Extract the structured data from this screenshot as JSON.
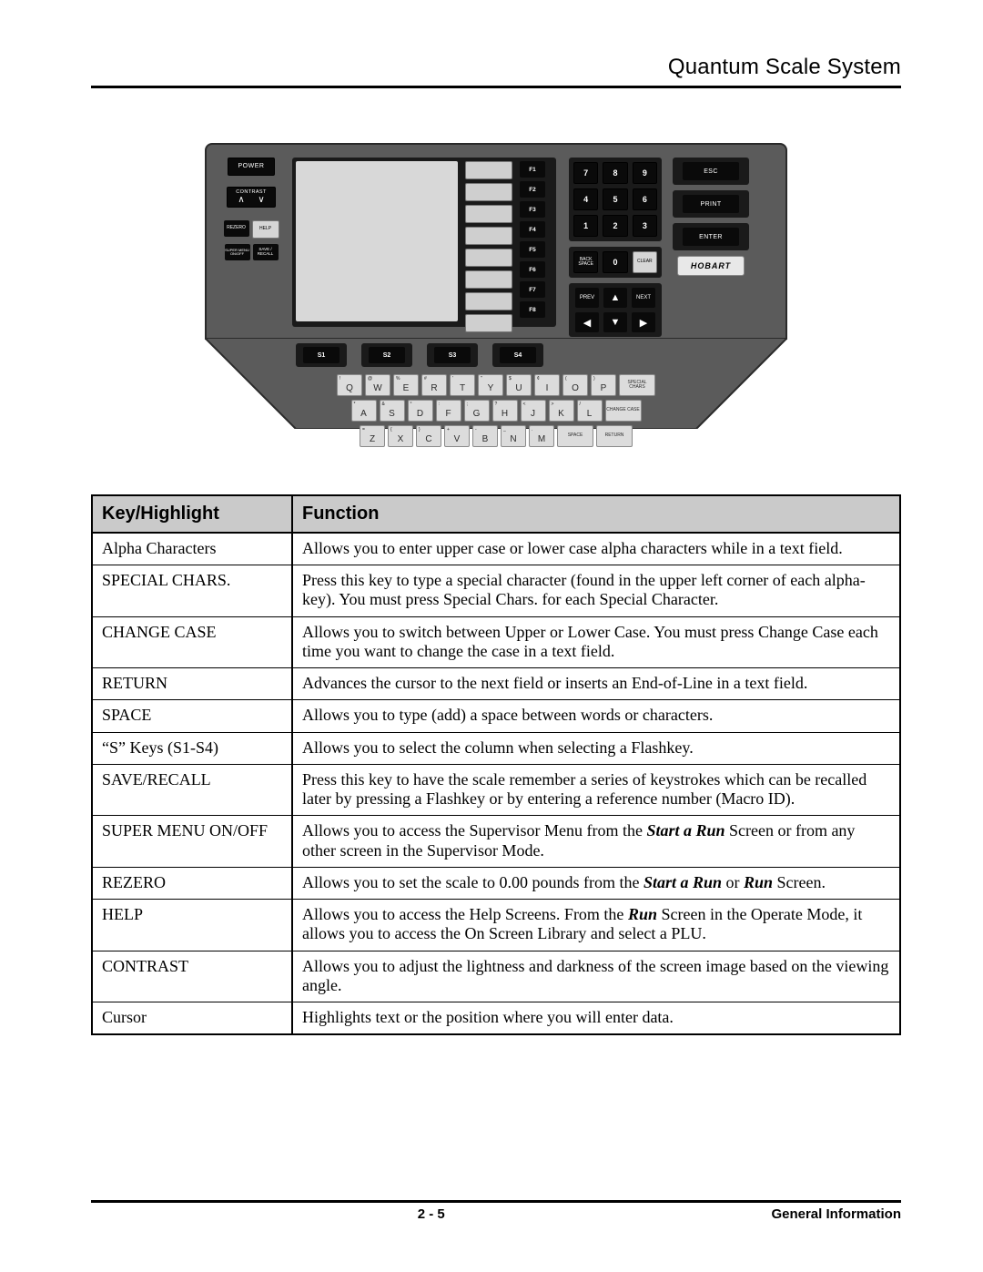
{
  "header": {
    "title": "Quantum Scale System"
  },
  "panel": {
    "left": {
      "power": "POWER",
      "contrast": "CONTRAST",
      "rezero": "REZERO",
      "help": "HELP",
      "super_menu": "SUPER\nMENU\nON/OFF",
      "save_recall": "SAVE /\nRECALL"
    },
    "fkeys": [
      "F1",
      "F2",
      "F3",
      "F4",
      "F5",
      "F6",
      "F7",
      "F8"
    ],
    "skeys": [
      "S1",
      "S2",
      "S3",
      "S4"
    ],
    "numpad": {
      "r1": [
        "7",
        "8",
        "9"
      ],
      "r2": [
        "4",
        "5",
        "6"
      ],
      "r3": [
        "1",
        "2",
        "3"
      ],
      "r4": [
        "BACK\nSPACE",
        "0",
        "CLEAR"
      ]
    },
    "right": {
      "esc": "ESC",
      "print": "PRINT",
      "enter": "ENTER",
      "brand": "HOBART"
    },
    "nav": {
      "prev": "PREV",
      "next": "NEXT",
      "up": "▲",
      "down": "▼",
      "left": "◀",
      "right": "▶"
    },
    "qwerty": {
      "row1": [
        {
          "s": "!",
          "m": "Q"
        },
        {
          "s": "@",
          "m": "W"
        },
        {
          "s": "%",
          "m": "E"
        },
        {
          "s": "#",
          "m": "R"
        },
        {
          "s": "'",
          "m": "T"
        },
        {
          "s": "\"",
          "m": "Y"
        },
        {
          "s": "$",
          "m": "U"
        },
        {
          "s": "¢",
          "m": "I"
        },
        {
          "s": "(",
          "m": "O"
        },
        {
          "s": ")",
          "m": "P"
        },
        {
          "s": "",
          "m": "SPECIAL\nCHARS",
          "wide": true
        }
      ],
      "row2": [
        {
          "s": "*",
          "m": "A"
        },
        {
          "s": "&",
          "m": "S"
        },
        {
          "s": "°",
          "m": "D"
        },
        {
          "s": ":",
          "m": "F"
        },
        {
          "s": ";",
          "m": "G"
        },
        {
          "s": "?",
          "m": "H"
        },
        {
          "s": "<",
          "m": "J"
        },
        {
          "s": ">",
          "m": "K"
        },
        {
          "s": "/",
          "m": "L"
        },
        {
          "s": "",
          "m": "CHANGE\nCASE",
          "wide": true
        }
      ],
      "row3": [
        {
          "s": "=",
          "m": "Z"
        },
        {
          "s": "{",
          "m": "X"
        },
        {
          "s": "}",
          "m": "C"
        },
        {
          "s": "+",
          "m": "V"
        },
        {
          "s": "-",
          "m": "B"
        },
        {
          "s": "_",
          "m": "N"
        },
        {
          "s": ".",
          "m": "M"
        },
        {
          "s": "",
          "m": "SPACE",
          "wide": true
        },
        {
          "s": "",
          "m": "RETURN",
          "wide": true
        }
      ]
    }
  },
  "table": {
    "headers": [
      "Key/Highlight",
      "Function"
    ],
    "rows": [
      {
        "k": "Alpha Characters",
        "f": "Allows you to enter upper case or lower case alpha characters while in a text field."
      },
      {
        "k": "SPECIAL CHARS.",
        "f": "Press this key to type a special character (found in the upper left corner of each alpha-key).  You must press Special Chars. for each Special Character."
      },
      {
        "k": "CHANGE CASE",
        "f": "Allows you to switch between Upper or Lower Case.  You must press Change Case each time you want to change the case in a text field."
      },
      {
        "k": "RETURN",
        "f": "Advances the cursor to the next field or inserts an End-of-Line in a text field."
      },
      {
        "k": "SPACE",
        "f": "Allows you to type (add) a space between words or characters."
      },
      {
        "k": "“S” Keys  (S1-S4)",
        "f": "Allows you to select the column when selecting a Flashkey."
      },
      {
        "k": "SAVE/RECALL",
        "f": "Press this key to have the scale remember a series of keystrokes which can be recalled later by pressing a Flashkey or by entering a reference number (Macro ID)."
      },
      {
        "k": "SUPER MENU ON/OFF",
        "f_html": "Allows you to access the Supervisor Menu from the <span class='ital-bold'>Start a Run</span> Screen or from any other screen in the Supervisor Mode."
      },
      {
        "k": "REZERO",
        "f_html": "Allows you to set the scale to 0.00 pounds from the <span class='ital-bold'>Start a Run</span> or <span class='ital-bold'>Run</span> Screen."
      },
      {
        "k": "HELP",
        "f_html": "Allows you to access the Help Screens.  From the <span class='ital-bold'>Run</span> Screen in the Operate Mode, it allows you to access the On Screen Library and select a PLU."
      },
      {
        "k": "CONTRAST",
        "f": "Allows you to adjust the lightness and darkness of the screen image based on the viewing angle."
      },
      {
        "k": "Cursor",
        "f": "Highlights text or the position where you will enter data."
      }
    ]
  },
  "footer": {
    "page": "2 - 5",
    "section": "General Information"
  }
}
